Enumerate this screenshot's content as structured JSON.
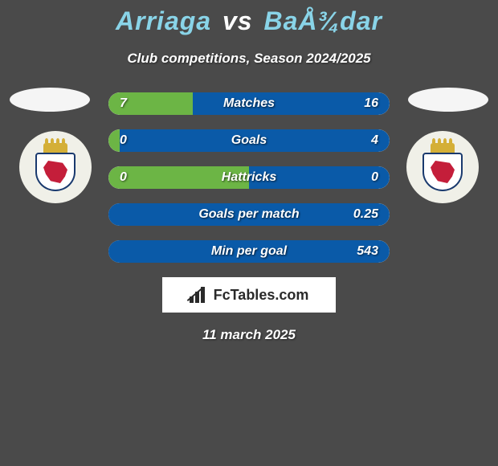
{
  "title": {
    "player1": "Arriaga",
    "vs": "vs",
    "player2": "BaÅ¾dar"
  },
  "subtitle": "Club competitions, Season 2024/2025",
  "stats": [
    {
      "label": "Matches",
      "left_value": "7",
      "right_value": "16",
      "left_pct": 30,
      "right_pct": 70,
      "left_color": "#6cb545",
      "right_color": "#0a5aa8"
    },
    {
      "label": "Goals",
      "left_value": "0",
      "right_value": "4",
      "left_pct": 4,
      "right_pct": 96,
      "left_color": "#6cb545",
      "right_color": "#0a5aa8"
    },
    {
      "label": "Hattricks",
      "left_value": "0",
      "right_value": "0",
      "left_pct": 50,
      "right_pct": 50,
      "left_color": "#6cb545",
      "right_color": "#0a5aa8"
    },
    {
      "label": "Goals per match",
      "left_value": "",
      "right_value": "0.25",
      "left_pct": 0,
      "right_pct": 100,
      "left_color": "#6cb545",
      "right_color": "#0a5aa8"
    },
    {
      "label": "Min per goal",
      "left_value": "",
      "right_value": "543",
      "left_pct": 0,
      "right_pct": 100,
      "left_color": "#6cb545",
      "right_color": "#0a5aa8"
    }
  ],
  "footer": {
    "logo_text": "FcTables.com",
    "date": "11 march 2025"
  },
  "colors": {
    "background": "#4a4a4a",
    "title_accent": "#89d4e8",
    "text": "#ffffff"
  }
}
